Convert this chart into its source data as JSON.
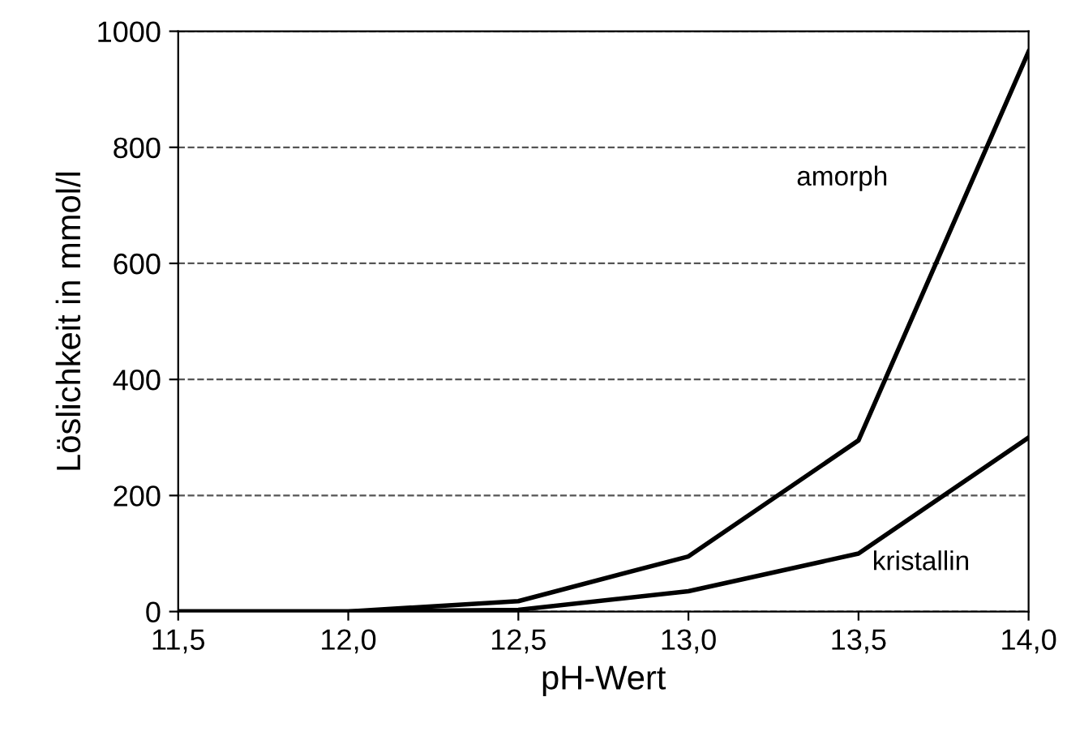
{
  "chart_data": {
    "type": "line",
    "xlabel": "pH-Wert",
    "ylabel": "Löslichkeit in mmol/l",
    "x": [
      11.5,
      12.0,
      12.5,
      13.0,
      13.5,
      14.0
    ],
    "series": [
      {
        "name": "amorph",
        "color": "#000000",
        "values": [
          0,
          0,
          18,
          95,
          295,
          965
        ]
      },
      {
        "name": "kristallin",
        "color": "#000000",
        "values": [
          0,
          0,
          3,
          35,
          100,
          300
        ]
      }
    ],
    "xlim": [
      11.5,
      14.0
    ],
    "xticks": [
      {
        "value": 11.5,
        "label": "11,5"
      },
      {
        "value": 12.0,
        "label": "12,0"
      },
      {
        "value": 12.5,
        "label": "12,5"
      },
      {
        "value": 13.0,
        "label": "13,0"
      },
      {
        "value": 13.5,
        "label": "13,5"
      },
      {
        "value": 14.0,
        "label": "14,0"
      }
    ],
    "ylim": [
      0,
      1000
    ],
    "yticks": [
      0,
      200,
      400,
      600,
      800,
      1000
    ],
    "grid": "y",
    "marker": "none",
    "line_style": "solid"
  }
}
